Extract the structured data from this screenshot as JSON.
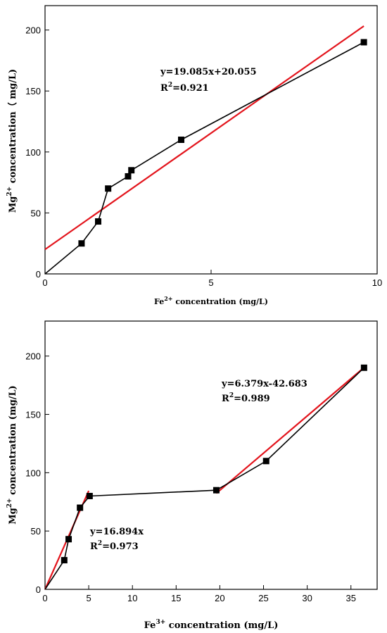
{
  "chart_data": [
    {
      "type": "line",
      "xlabel_main": "Fe",
      "xlabel_sup": "2+",
      "xlabel_rest": " concentration (mg/L)",
      "ylabel_main": "Mg",
      "ylabel_sup": "2+",
      "ylabel_rest": " concentration（ mg/L)",
      "xlim": [
        0,
        10
      ],
      "ylim": [
        0,
        220
      ],
      "xticks": [
        0,
        5,
        10
      ],
      "yticks": [
        0,
        50,
        100,
        150,
        200
      ],
      "series": [
        {
          "x": [
            0,
            1.1,
            1.6,
            1.9,
            2.5,
            2.6,
            4.1,
            9.6
          ],
          "y": [
            0,
            25,
            43,
            70,
            80,
            85,
            110,
            190
          ],
          "color": "#000000"
        }
      ],
      "fits": [
        {
          "slope": 19.085,
          "intercept": 20.055,
          "x_range": [
            0,
            9.6
          ],
          "color": "#e3141c"
        }
      ],
      "annotations": [
        {
          "line1": "y=19.085x+20.055",
          "r_main": "R",
          "r_sup": "2",
          "r_rest": "=0.921"
        }
      ]
    },
    {
      "type": "line",
      "xlabel_main": "Fe",
      "xlabel_sup": "3+",
      "xlabel_rest": " concentration (mg/L)",
      "ylabel_main": "Mg",
      "ylabel_sup": "2+",
      "ylabel_rest": " concentration (mg/L)",
      "xlim": [
        0,
        38
      ],
      "ylim": [
        0,
        230
      ],
      "xticks": [
        0,
        5,
        10,
        15,
        20,
        25,
        30,
        35
      ],
      "yticks": [
        0,
        50,
        100,
        150,
        200
      ],
      "series": [
        {
          "x": [
            0,
            2.2,
            2.7,
            4.0,
            5.1,
            19.6,
            25.3,
            36.5
          ],
          "y": [
            0,
            25,
            43,
            70,
            80,
            85,
            110,
            190
          ],
          "color": "#000000"
        }
      ],
      "fits": [
        {
          "slope": 16.894,
          "intercept": 0,
          "x_range": [
            0,
            5.0
          ],
          "color": "#e3141c"
        },
        {
          "slope": 6.379,
          "intercept": -42.683,
          "x_range": [
            19.6,
            36.5
          ],
          "color": "#e3141c"
        }
      ],
      "annotations": [
        {
          "line1": "y=6.379x-42.683",
          "r_main": "R",
          "r_sup": "2",
          "r_rest": "=0.989"
        },
        {
          "line1": "y=16.894x",
          "r_main": "R",
          "r_sup": "2",
          "r_rest": "=0.973"
        }
      ]
    }
  ]
}
